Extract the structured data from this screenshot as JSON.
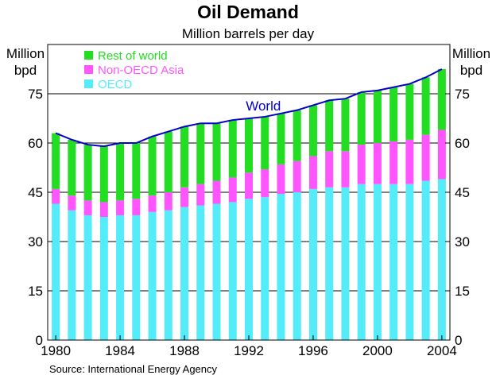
{
  "chart_data": {
    "type": "bar",
    "stacked": true,
    "title": "Oil Demand",
    "subtitle": "Million barrels per day",
    "ylabel_left": "Million bpd",
    "ylabel_right": "Million bpd",
    "ylabel_left_lines": [
      "Million",
      "bpd"
    ],
    "ylabel_right_lines": [
      "Million",
      "bpd"
    ],
    "source": "Source: International Energy Agency",
    "ylim": [
      0,
      90
    ],
    "xlim": [
      1980,
      2004
    ],
    "yticks": [
      0,
      15,
      30,
      45,
      60,
      75
    ],
    "ytick_labels": [
      "0",
      "15",
      "30",
      "45",
      "60",
      "75"
    ],
    "xticks": [
      1980,
      1984,
      1988,
      1992,
      1996,
      2000,
      2004
    ],
    "xtick_labels": [
      "1980",
      "1984",
      "1988",
      "1992",
      "1996",
      "2000",
      "2004"
    ],
    "grid": "horizontal",
    "categories": [
      1980,
      1981,
      1982,
      1983,
      1984,
      1985,
      1986,
      1987,
      1988,
      1989,
      1990,
      1991,
      1992,
      1993,
      1994,
      1995,
      1996,
      1997,
      1998,
      1999,
      2000,
      2001,
      2002,
      2003,
      2004
    ],
    "series": [
      {
        "name": "OECD",
        "color": "#55ecfa",
        "values": [
          41.5,
          39.5,
          38,
          37.5,
          38,
          38,
          39,
          39.5,
          40.5,
          41,
          41.5,
          42,
          43,
          43.5,
          44.5,
          45,
          46,
          46.5,
          46.5,
          47.5,
          47.5,
          47.5,
          47.5,
          48.5,
          49
        ]
      },
      {
        "name": "Non-OECD Asia",
        "color": "#ff55ff",
        "values": [
          4.5,
          4.5,
          4.5,
          4.5,
          4.5,
          5,
          5,
          5.5,
          6,
          6.5,
          7,
          7.5,
          8,
          8.5,
          9,
          9.5,
          10,
          11,
          11,
          12,
          12.5,
          13,
          13.5,
          14,
          15
        ]
      },
      {
        "name": "Rest of world",
        "color": "#22dd22",
        "values": [
          17,
          17,
          17,
          17,
          17.5,
          17,
          18,
          18.5,
          18.5,
          18.5,
          17.5,
          17.5,
          16.5,
          16,
          15.5,
          15.5,
          15.5,
          15.5,
          16,
          16,
          16,
          16.5,
          17,
          17.5,
          18.5
        ]
      },
      {
        "name": "World",
        "type": "line",
        "color": "#0000cc",
        "values": [
          63,
          61,
          59.5,
          59,
          60,
          60,
          62,
          63.5,
          65,
          66,
          66,
          67,
          67.5,
          68,
          69,
          70,
          71.5,
          73,
          73.5,
          75.5,
          76,
          77,
          78,
          80,
          82.5
        ]
      }
    ],
    "legend": [
      "Rest of world",
      "Non-OECD Asia",
      "OECD"
    ],
    "legend_position": "top-left",
    "annotations": [
      {
        "text": "World",
        "near": 1993
      }
    ]
  }
}
